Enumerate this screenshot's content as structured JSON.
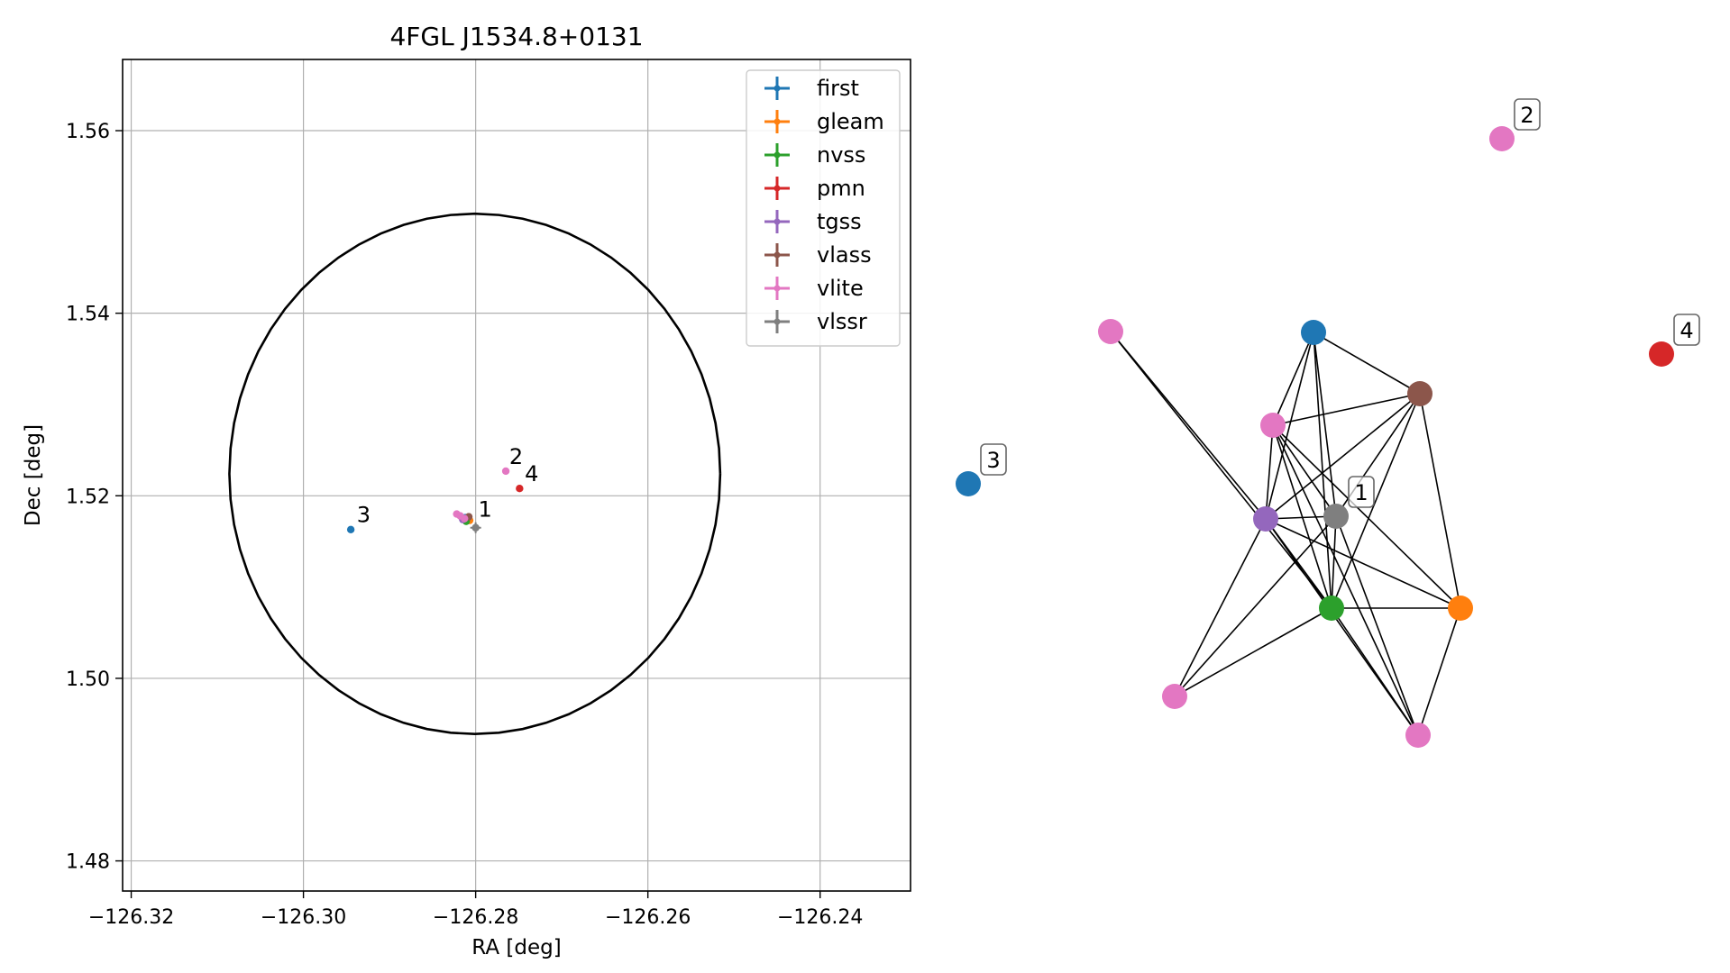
{
  "chart_data": [
    {
      "type": "scatter",
      "title": "4FGL J1534.8+0131",
      "xlabel": "RA [deg]",
      "ylabel": "Dec [deg]",
      "xlim": [
        -126.321,
        -126.2295
      ],
      "ylim": [
        1.4767,
        1.5678
      ],
      "xticks": [
        -126.32,
        -126.3,
        -126.28,
        -126.26,
        -126.24
      ],
      "xtick_labels": [
        "−126.32",
        "−126.30",
        "−126.28",
        "−126.26",
        "−126.24"
      ],
      "yticks": [
        1.48,
        1.5,
        1.52,
        1.54,
        1.56
      ],
      "ytick_labels": [
        "1.48",
        "1.50",
        "1.52",
        "1.54",
        "1.56"
      ],
      "grid": true,
      "legend_position": "top-right",
      "colors": {
        "first": "#1f77b4",
        "gleam": "#ff7f0e",
        "nvss": "#2ca02c",
        "pmn": "#d62728",
        "tgss": "#9467bd",
        "vlass": "#8c564b",
        "vlite": "#e377c2",
        "vlssr": "#7f7f7f"
      },
      "series": [
        {
          "name": "first",
          "points": [
            {
              "x": -126.2945,
              "y": 1.5163
            },
            {
              "x": -126.2812,
              "y": 1.5176
            }
          ]
        },
        {
          "name": "gleam",
          "points": [
            {
              "x": -126.2807,
              "y": 1.5173
            }
          ]
        },
        {
          "name": "nvss",
          "points": [
            {
              "x": -126.2811,
              "y": 1.5172
            }
          ]
        },
        {
          "name": "pmn",
          "points": [
            {
              "x": -126.2749,
              "y": 1.5208
            }
          ]
        },
        {
          "name": "tgss",
          "points": [
            {
              "x": -126.2815,
              "y": 1.5174
            }
          ]
        },
        {
          "name": "vlass",
          "points": [
            {
              "x": -126.2808,
              "y": 1.5177
            }
          ]
        },
        {
          "name": "vlite",
          "points": [
            {
              "x": -126.2765,
              "y": 1.5227
            },
            {
              "x": -126.2822,
              "y": 1.518
            },
            {
              "x": -126.2818,
              "y": 1.5178
            },
            {
              "x": -126.2813,
              "y": 1.5175
            }
          ]
        },
        {
          "name": "vlssr",
          "points": [
            {
              "x": -126.28,
              "y": 1.5165
            }
          ]
        }
      ],
      "annotations": [
        {
          "text": "1",
          "x": -126.2797,
          "y": 1.5177
        },
        {
          "text": "2",
          "x": -126.2761,
          "y": 1.5235
        },
        {
          "text": "3",
          "x": -126.2938,
          "y": 1.5171
        },
        {
          "text": "4",
          "x": -126.2743,
          "y": 1.5216
        }
      ],
      "circle": {
        "center": [
          -126.2801,
          1.5224
        ],
        "radius_deg": 0.0285
      }
    },
    {
      "type": "graph",
      "nodes": [
        {
          "id": "first_a",
          "color": "#1f77b4",
          "label": ""
        },
        {
          "id": "first_b",
          "color": "#1f77b4",
          "label": "3"
        },
        {
          "id": "vlite_2",
          "color": "#e377c2",
          "label": "2"
        },
        {
          "id": "pmn",
          "color": "#d62728",
          "label": "4"
        },
        {
          "id": "vlite_a",
          "color": "#e377c2",
          "label": ""
        },
        {
          "id": "vlass",
          "color": "#8c564b",
          "label": ""
        },
        {
          "id": "vlite_b",
          "color": "#e377c2",
          "label": ""
        },
        {
          "id": "tgss",
          "color": "#9467bd",
          "label": ""
        },
        {
          "id": "vlssr",
          "color": "#7f7f7f",
          "label": "1"
        },
        {
          "id": "nvss",
          "color": "#2ca02c",
          "label": ""
        },
        {
          "id": "gleam",
          "color": "#ff7f0e",
          "label": ""
        },
        {
          "id": "vlite_c",
          "color": "#e377c2",
          "label": ""
        },
        {
          "id": "vlite_d",
          "color": "#e377c2",
          "label": ""
        }
      ],
      "edges": [
        [
          "vlite_a",
          "tgss"
        ],
        [
          "vlite_a",
          "nvss"
        ],
        [
          "first_a",
          "vlass"
        ],
        [
          "first_a",
          "vlite_b"
        ],
        [
          "first_a",
          "tgss"
        ],
        [
          "first_a",
          "vlssr"
        ],
        [
          "first_a",
          "nvss"
        ],
        [
          "vlass",
          "vlite_b"
        ],
        [
          "vlass",
          "tgss"
        ],
        [
          "vlass",
          "vlssr"
        ],
        [
          "vlass",
          "nvss"
        ],
        [
          "vlass",
          "gleam"
        ],
        [
          "vlite_b",
          "tgss"
        ],
        [
          "vlite_b",
          "vlssr"
        ],
        [
          "vlite_b",
          "nvss"
        ],
        [
          "vlite_b",
          "gleam"
        ],
        [
          "vlite_b",
          "vlite_d"
        ],
        [
          "tgss",
          "vlssr"
        ],
        [
          "tgss",
          "nvss"
        ],
        [
          "tgss",
          "gleam"
        ],
        [
          "tgss",
          "vlite_c"
        ],
        [
          "tgss",
          "vlite_d"
        ],
        [
          "vlssr",
          "nvss"
        ],
        [
          "vlssr",
          "vlite_c"
        ],
        [
          "vlssr",
          "vlite_d"
        ],
        [
          "nvss",
          "gleam"
        ],
        [
          "nvss",
          "vlite_c"
        ],
        [
          "nvss",
          "vlite_d"
        ],
        [
          "gleam",
          "vlite_d"
        ]
      ]
    }
  ]
}
